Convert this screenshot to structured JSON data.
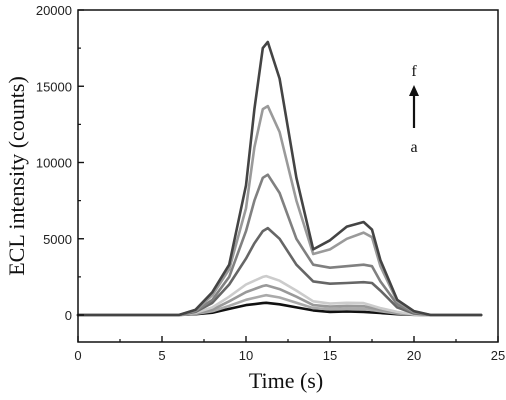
{
  "chart_data": {
    "type": "line",
    "title": "",
    "xlabel": "Time (s)",
    "ylabel": "ECL intensity (counts)",
    "xlim": [
      0,
      25
    ],
    "ylim": [
      0,
      20000
    ],
    "xticks": [
      0,
      5,
      10,
      15,
      20,
      25
    ],
    "yticks": [
      0,
      5000,
      10000,
      15000,
      20000
    ],
    "grid": false,
    "annotations": [
      {
        "text": "f",
        "x": 23.4,
        "y": 16000
      },
      {
        "text": "a",
        "x": 23.4,
        "y": 11000
      }
    ],
    "series": [
      {
        "color": "#111111",
        "x": [
          0,
          6,
          7,
          8,
          9,
          10,
          11,
          11.2,
          12,
          13,
          14,
          15,
          16,
          17,
          18,
          19,
          20,
          21,
          24
        ],
        "y": [
          0,
          0,
          50,
          150,
          400,
          650,
          780,
          800,
          700,
          500,
          300,
          200,
          230,
          200,
          130,
          50,
          10,
          0,
          0
        ]
      },
      {
        "color": "#aaaaaa",
        "x": [
          0,
          6,
          7,
          8,
          9,
          10,
          11,
          11.2,
          12,
          13,
          14,
          15,
          16,
          17,
          18,
          19,
          20,
          21,
          24
        ],
        "y": [
          0,
          0,
          80,
          250,
          600,
          1000,
          1250,
          1300,
          1150,
          800,
          450,
          380,
          420,
          400,
          250,
          100,
          20,
          0,
          0
        ]
      },
      {
        "color": "#999999",
        "x": [
          0,
          6,
          7,
          8,
          9,
          10,
          11,
          11.2,
          12,
          13,
          14,
          15,
          16,
          17,
          18,
          19,
          20,
          21,
          24
        ],
        "y": [
          0,
          0,
          100,
          350,
          900,
          1500,
          1900,
          1950,
          1700,
          1200,
          650,
          550,
          600,
          580,
          350,
          150,
          30,
          0,
          0
        ]
      },
      {
        "color": "#cccccc",
        "x": [
          0,
          6,
          7,
          8,
          9,
          10,
          11,
          11.2,
          12,
          13,
          14,
          15,
          16,
          17,
          18,
          19,
          20,
          21,
          24
        ],
        "y": [
          0,
          0,
          150,
          500,
          1200,
          2000,
          2500,
          2550,
          2250,
          1600,
          900,
          750,
          800,
          780,
          450,
          200,
          40,
          0,
          0
        ]
      },
      {
        "color": "#666666",
        "x": [
          0,
          6,
          7,
          8,
          9,
          10,
          10.5,
          11,
          11.3,
          12,
          13,
          14,
          15,
          16,
          17,
          17.5,
          18,
          19,
          20,
          21,
          24
        ],
        "y": [
          0,
          0,
          200,
          800,
          2000,
          3700,
          4700,
          5500,
          5700,
          5000,
          3300,
          2200,
          2050,
          2100,
          2150,
          2100,
          1600,
          500,
          100,
          0,
          0
        ]
      },
      {
        "color": "#808080",
        "x": [
          0,
          6,
          7,
          8,
          9,
          10,
          10.5,
          11,
          11.3,
          12,
          13,
          14,
          15,
          16,
          17,
          17.5,
          18,
          19,
          20,
          21,
          24
        ],
        "y": [
          0,
          0,
          250,
          1000,
          2500,
          5500,
          7500,
          9000,
          9200,
          8000,
          5000,
          3300,
          3100,
          3200,
          3300,
          3200,
          2200,
          700,
          150,
          0,
          0
        ]
      },
      {
        "color": "#9a9a9a",
        "x": [
          0,
          6,
          7,
          8,
          9,
          10,
          10.5,
          11,
          11.3,
          12,
          13,
          14,
          15,
          16,
          17,
          17.5,
          18,
          19,
          20,
          21,
          24
        ],
        "y": [
          0,
          0,
          300,
          1300,
          3000,
          7000,
          11000,
          13500,
          13700,
          12000,
          7500,
          4000,
          4300,
          5000,
          5400,
          5100,
          3200,
          900,
          200,
          0,
          0
        ]
      },
      {
        "color": "#444444",
        "x": [
          0,
          6,
          7,
          8,
          9,
          10,
          10.5,
          11,
          11.3,
          12,
          13,
          14,
          15,
          16,
          17,
          17.5,
          18,
          19,
          20,
          21,
          24
        ],
        "y": [
          0,
          0,
          350,
          1500,
          3300,
          8500,
          13500,
          17500,
          17900,
          15500,
          9000,
          4300,
          4900,
          5800,
          6100,
          5600,
          3600,
          1000,
          250,
          0,
          0
        ]
      }
    ]
  }
}
